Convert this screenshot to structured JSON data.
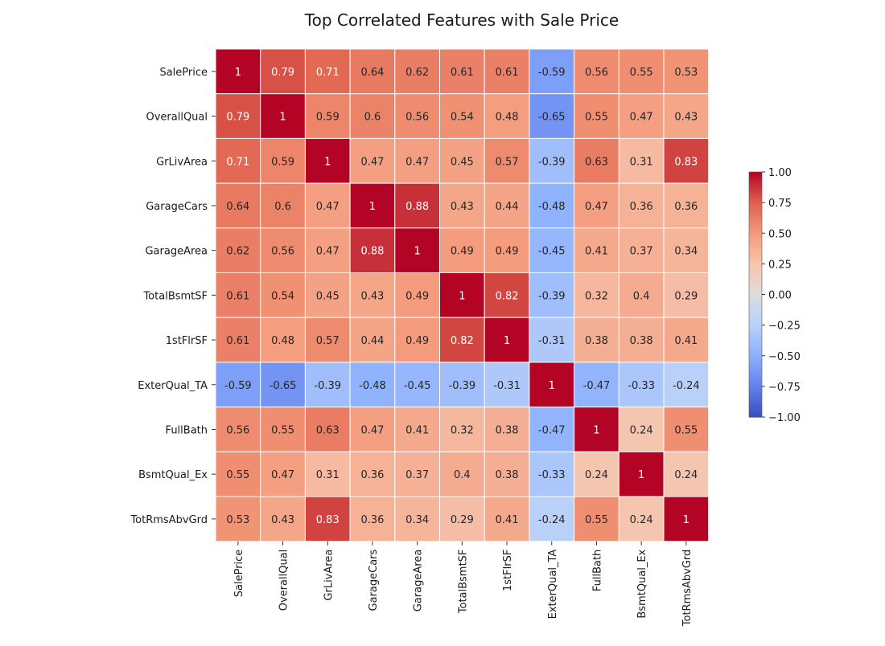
{
  "chart_data": {
    "type": "heatmap",
    "title": "Top Correlated Features with Sale Price",
    "xlabel": "",
    "ylabel": "",
    "colormap": "coolwarm",
    "vmin": -1,
    "vmax": 1,
    "colorbar_ticks": [
      "1.00",
      "0.75",
      "0.50",
      "0.25",
      "0.00",
      "−0.25",
      "−0.50",
      "−0.75",
      "−1.00"
    ],
    "colorbar_tick_values": [
      1.0,
      0.75,
      0.5,
      0.25,
      0.0,
      -0.25,
      -0.5,
      -0.75,
      -1.0
    ],
    "annotations": true,
    "gridlines": "white cell borders",
    "row_labels": [
      "SalePrice",
      "OverallQual",
      "GrLivArea",
      "GarageCars",
      "GarageArea",
      "TotalBsmtSF",
      "1stFlrSF",
      "ExterQual_TA",
      "FullBath",
      "BsmtQual_Ex",
      "TotRmsAbvGrd"
    ],
    "col_labels": [
      "SalePrice",
      "OverallQual",
      "GrLivArea",
      "GarageCars",
      "GarageArea",
      "TotalBsmtSF",
      "1stFlrSF",
      "ExterQual_TA",
      "FullBath",
      "BsmtQual_Ex",
      "TotRmsAbvGrd"
    ],
    "cell_labels": [
      [
        "1",
        "0.79",
        "0.71",
        "0.64",
        "0.62",
        "0.61",
        "0.61",
        "-0.59",
        "0.56",
        "0.55",
        "0.53"
      ],
      [
        "0.79",
        "1",
        "0.59",
        "0.6",
        "0.56",
        "0.54",
        "0.48",
        "-0.65",
        "0.55",
        "0.47",
        "0.43"
      ],
      [
        "0.71",
        "0.59",
        "1",
        "0.47",
        "0.47",
        "0.45",
        "0.57",
        "-0.39",
        "0.63",
        "0.31",
        "0.83"
      ],
      [
        "0.64",
        "0.6",
        "0.47",
        "1",
        "0.88",
        "0.43",
        "0.44",
        "-0.48",
        "0.47",
        "0.36",
        "0.36"
      ],
      [
        "0.62",
        "0.56",
        "0.47",
        "0.88",
        "1",
        "0.49",
        "0.49",
        "-0.45",
        "0.41",
        "0.37",
        "0.34"
      ],
      [
        "0.61",
        "0.54",
        "0.45",
        "0.43",
        "0.49",
        "1",
        "0.82",
        "-0.39",
        "0.32",
        "0.4",
        "0.29"
      ],
      [
        "0.61",
        "0.48",
        "0.57",
        "0.44",
        "0.49",
        "0.82",
        "1",
        "-0.31",
        "0.38",
        "0.38",
        "0.41"
      ],
      [
        "-0.59",
        "-0.65",
        "-0.39",
        "-0.48",
        "-0.45",
        "-0.39",
        "-0.31",
        "1",
        "-0.47",
        "-0.33",
        "-0.24"
      ],
      [
        "0.56",
        "0.55",
        "0.63",
        "0.47",
        "0.41",
        "0.32",
        "0.38",
        "-0.47",
        "1",
        "0.24",
        "0.55"
      ],
      [
        "0.55",
        "0.47",
        "0.31",
        "0.36",
        "0.37",
        "0.4",
        "0.38",
        "-0.33",
        "0.24",
        "1",
        "0.24"
      ],
      [
        "0.53",
        "0.43",
        "0.83",
        "0.36",
        "0.34",
        "0.29",
        "0.41",
        "-0.24",
        "0.55",
        "0.24",
        "1"
      ]
    ]
  }
}
